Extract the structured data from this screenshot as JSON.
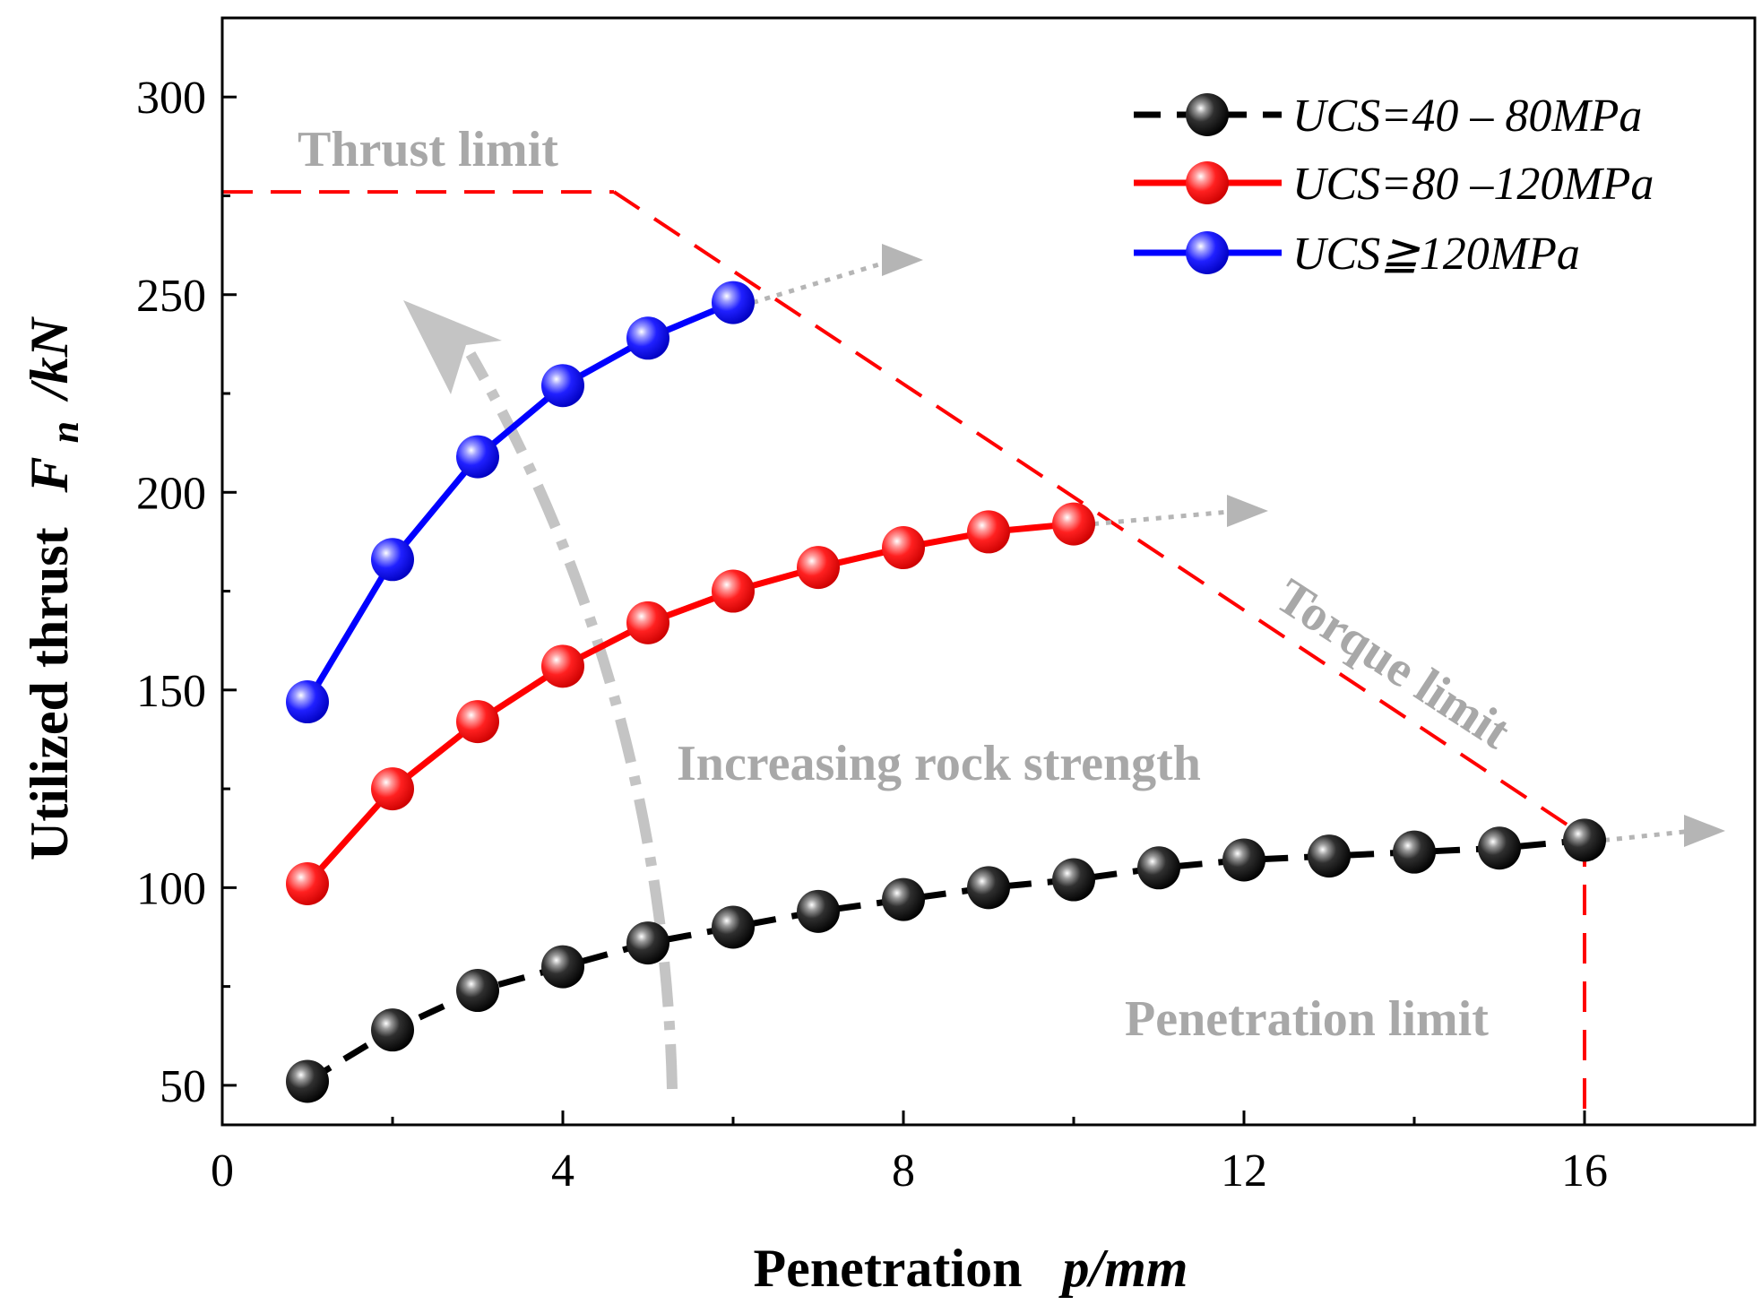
{
  "chart_data": {
    "type": "line",
    "xlabel": "Penetration",
    "xlabel_var": "p/mm",
    "ylabel": "Utilized thrust",
    "ylabel_var": "F",
    "ylabel_sub": "n",
    "ylabel_unit": "/kN",
    "xlim": [
      0,
      18
    ],
    "ylim": [
      40,
      320
    ],
    "xticks": [
      0,
      4,
      8,
      12,
      16
    ],
    "yticks": [
      50,
      100,
      150,
      200,
      250,
      300
    ],
    "grid": false,
    "legend_position": "top-right",
    "series": [
      {
        "name": "UCS=40 – 80MPa",
        "color": "#000000",
        "line_style": "dashed",
        "x": [
          1,
          2,
          3,
          4,
          5,
          6,
          7,
          8,
          9,
          10,
          11,
          12,
          13,
          14,
          15,
          16
        ],
        "y": [
          51,
          64,
          74,
          80,
          86,
          90,
          94,
          97,
          100,
          102,
          105,
          107,
          108,
          109,
          110,
          112
        ]
      },
      {
        "name": "UCS=80 –120MPa",
        "color": "#ff0000",
        "line_style": "solid",
        "x": [
          1,
          2,
          3,
          4,
          5,
          6,
          7,
          8,
          9,
          10
        ],
        "y": [
          101,
          125,
          142,
          156,
          167,
          175,
          181,
          186,
          190,
          192
        ]
      },
      {
        "name": "UCS≧120MPa",
        "color": "#0000ff",
        "line_style": "solid",
        "x": [
          1,
          2,
          3,
          4,
          5,
          6
        ],
        "y": [
          147,
          183,
          209,
          227,
          239,
          248
        ]
      }
    ],
    "limit_lines": {
      "color": "#ff0000",
      "thrust": [
        [
          0,
          276
        ],
        [
          4.6,
          276
        ]
      ],
      "torque": [
        [
          4.6,
          276
        ],
        [
          16,
          113
        ]
      ],
      "penetration": [
        [
          16,
          113
        ],
        [
          16,
          40
        ]
      ]
    },
    "annotations": {
      "thrust_limit": "Thrust limit",
      "torque_limit": "Torque limit",
      "penetration_limit": "Penetration limit",
      "increasing_strength": "Increasing rock strength"
    }
  }
}
